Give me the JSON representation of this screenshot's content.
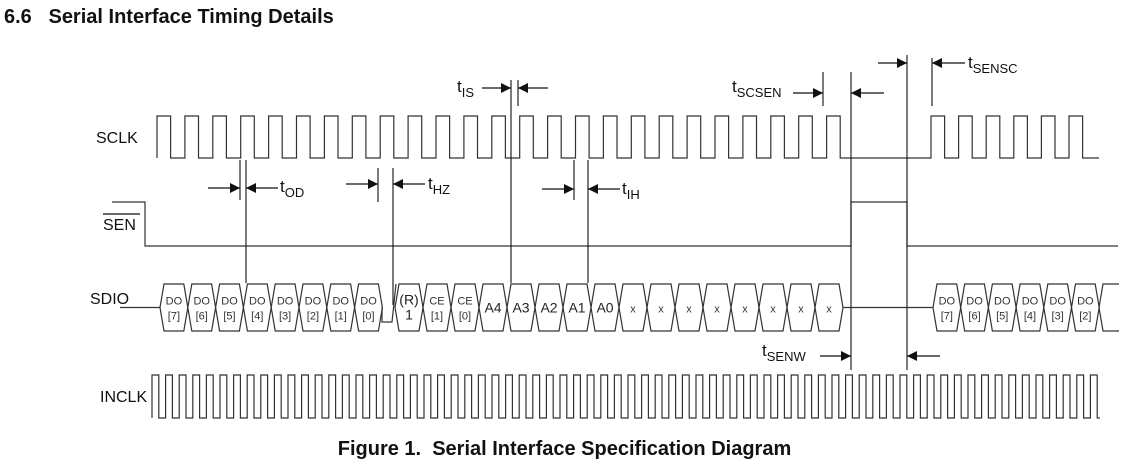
{
  "section": {
    "title": "6.6   Serial Interface Timing Details"
  },
  "caption": "Figure 1.  Serial Interface Specification Diagram",
  "signals": {
    "sclk": "SCLK",
    "sen": "SEN",
    "sdio": "SDIO",
    "inclk": "INCLK"
  },
  "timing_labels": {
    "tod": {
      "t": "t",
      "sub": "OD"
    },
    "thz": {
      "t": "t",
      "sub": "HZ"
    },
    "tih": {
      "t": "t",
      "sub": "IH"
    },
    "tis": {
      "t": "t",
      "sub": "IS"
    },
    "tscsen": {
      "t": "t",
      "sub": "SCSEN"
    },
    "tsensc": {
      "t": "t",
      "sub": "SENSC"
    },
    "tsenw": {
      "t": "t",
      "sub": "SENW"
    }
  },
  "sdio_group1": [
    {
      "top": "DO",
      "bottom": "[7]"
    },
    {
      "top": "DO",
      "bottom": "[6]"
    },
    {
      "top": "DO",
      "bottom": "[5]"
    },
    {
      "top": "DO",
      "bottom": "[4]"
    },
    {
      "top": "DO",
      "bottom": "[3]"
    },
    {
      "top": "DO",
      "bottom": "[2]"
    },
    {
      "top": "DO",
      "bottom": "[1]"
    },
    {
      "top": "DO",
      "bottom": "[0]"
    }
  ],
  "sdio_group2": [
    {
      "top": "(R)",
      "bottom": "1"
    },
    {
      "top": "CE",
      "bottom": "[1]"
    },
    {
      "top": "CE",
      "bottom": "[0]"
    },
    {
      "label": "A4"
    },
    {
      "label": "A3"
    },
    {
      "label": "A2"
    },
    {
      "label": "A1"
    },
    {
      "label": "A0"
    },
    {
      "label": "x"
    },
    {
      "label": "x"
    },
    {
      "label": "x"
    },
    {
      "label": "x"
    },
    {
      "label": "x"
    },
    {
      "label": "x"
    },
    {
      "label": "x"
    },
    {
      "label": "x"
    }
  ],
  "sdio_group3": [
    {
      "top": "DO",
      "bottom": "[7]"
    },
    {
      "top": "DO",
      "bottom": "[6]"
    },
    {
      "top": "DO",
      "bottom": "[5]"
    },
    {
      "top": "DO",
      "bottom": "[4]"
    },
    {
      "top": "DO",
      "bottom": "[3]"
    },
    {
      "top": "DO",
      "bottom": "[2]"
    }
  ],
  "sclk": {
    "pulses_before_gap": 25,
    "pulses_after_gap": 6
  }
}
